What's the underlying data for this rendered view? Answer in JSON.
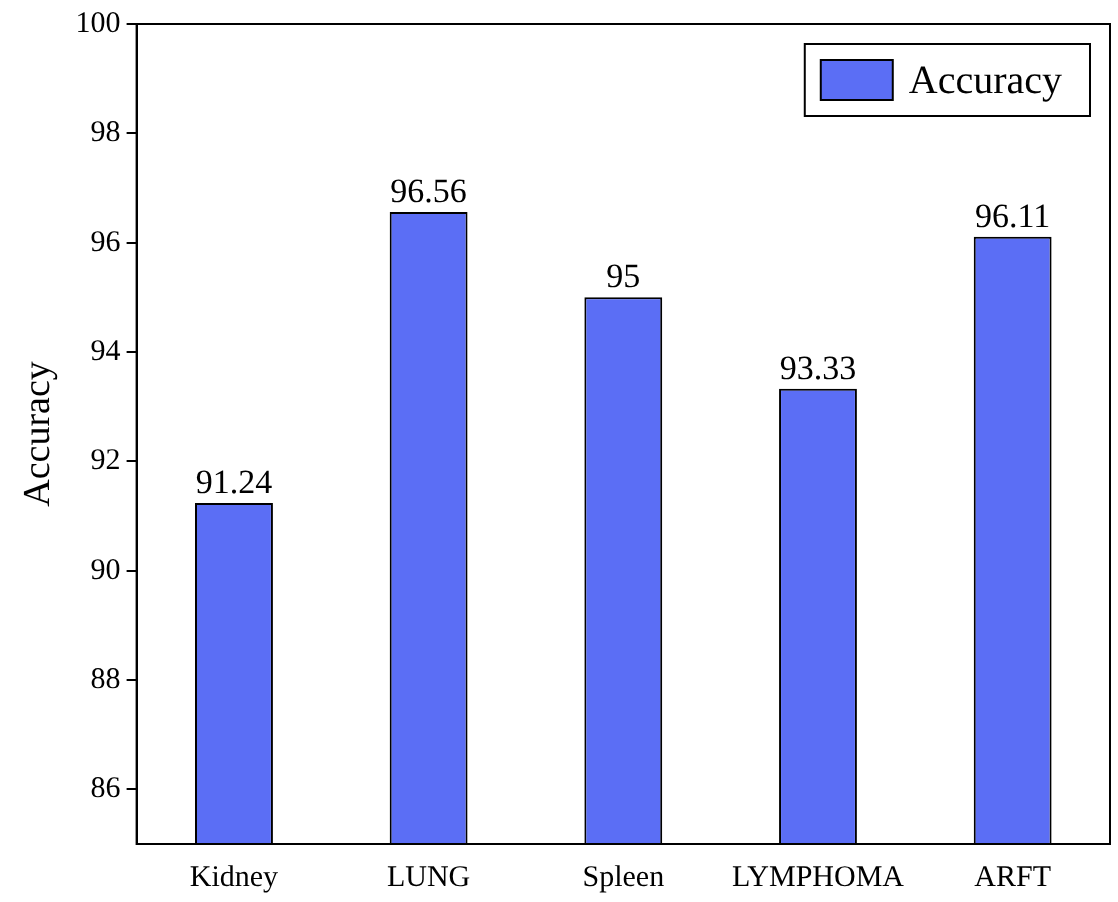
{
  "chart_data": {
    "type": "bar",
    "ylabel": "Accuracy",
    "categories": [
      "Kidney",
      "LUNG",
      "Spleen",
      "LYMPHOMA",
      "ARFT"
    ],
    "series": [
      {
        "name": "Accuracy",
        "color": "#5b6ef5",
        "values": [
          91.24,
          96.56,
          95,
          93.33,
          96.11
        ]
      }
    ],
    "ylim": [
      85,
      100
    ],
    "yticks": [
      86,
      88,
      90,
      92,
      94,
      96,
      98,
      100
    ],
    "grid": false,
    "legend": "top right",
    "data_labels": true
  }
}
